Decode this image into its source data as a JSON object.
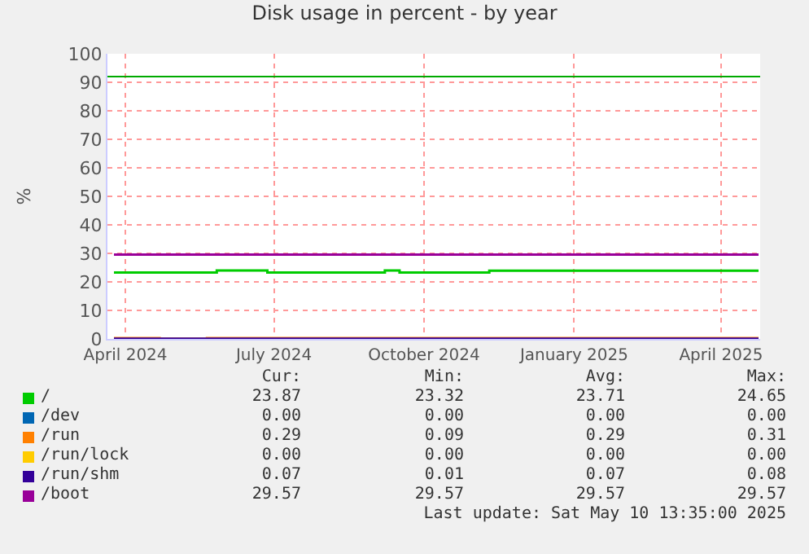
{
  "chart_data": {
    "type": "step",
    "title": "Disk usage in percent - by year",
    "ylabel": "%",
    "xlim": [
      "2024-03-21",
      "2025-04-25"
    ],
    "xticks": [
      {
        "value": "2024-04-01",
        "label": "April 2024"
      },
      {
        "value": "2024-07-01",
        "label": "July 2024"
      },
      {
        "value": "2024-10-01",
        "label": "October 2024"
      },
      {
        "value": "2025-01-01",
        "label": "January 2025"
      },
      {
        "value": "2025-04-01",
        "label": "April 2025"
      }
    ],
    "ylim": [
      0,
      100
    ],
    "yticks": [
      0,
      10,
      20,
      30,
      40,
      50,
      60,
      70,
      80,
      90,
      100
    ],
    "grid": true,
    "legend": "bottom",
    "series": [
      {
        "name": "/",
        "color": "#00cc00",
        "x": [
          "2024-03-25",
          "2024-05-27",
          "2024-06-27",
          "2024-09-07",
          "2024-09-16",
          "2024-11-10",
          "2025-04-24"
        ],
        "values": [
          23.3,
          24.0,
          23.3,
          24.0,
          23.3,
          23.9,
          23.9
        ]
      },
      {
        "name": "/dev",
        "color": "#0066b3"
      },
      {
        "name": "/run",
        "color": "#ff8000",
        "x": [
          "2024-03-25",
          "2024-04-22",
          "2024-05-21",
          "2025-04-24"
        ],
        "values": [
          0.3,
          0.1,
          0.3,
          0.3
        ]
      },
      {
        "name": "/run/lock",
        "color": "#ffcc00"
      },
      {
        "name": "/run/shm",
        "color": "#330099",
        "x": [
          "2024-03-25",
          "2025-04-24"
        ],
        "values": [
          0.1,
          0.1
        ]
      },
      {
        "name": "/boot",
        "color": "#990099",
        "x": [
          "2024-03-25",
          "2025-04-24"
        ],
        "values": [
          29.6,
          29.6
        ]
      }
    ],
    "ref_lines": [
      {
        "axis": "y",
        "value": 92,
        "color": "#00aa00"
      }
    ],
    "annotations": [
      "Cur:",
      "Min:",
      "Avg:",
      "Max:",
      "23.87",
      "23.32",
      "23.71",
      "24.65",
      "0.00",
      "0.00",
      "0.00",
      "0.00",
      "0.29",
      "0.09",
      "0.29",
      "0.31",
      "0.00",
      "0.00",
      "0.00",
      "0.00",
      "0.07",
      "0.01",
      "0.07",
      "0.08",
      "29.57",
      "29.57",
      "29.57",
      "29.57",
      "Last update: Sat May 10 13:35:00 2025"
    ]
  }
}
